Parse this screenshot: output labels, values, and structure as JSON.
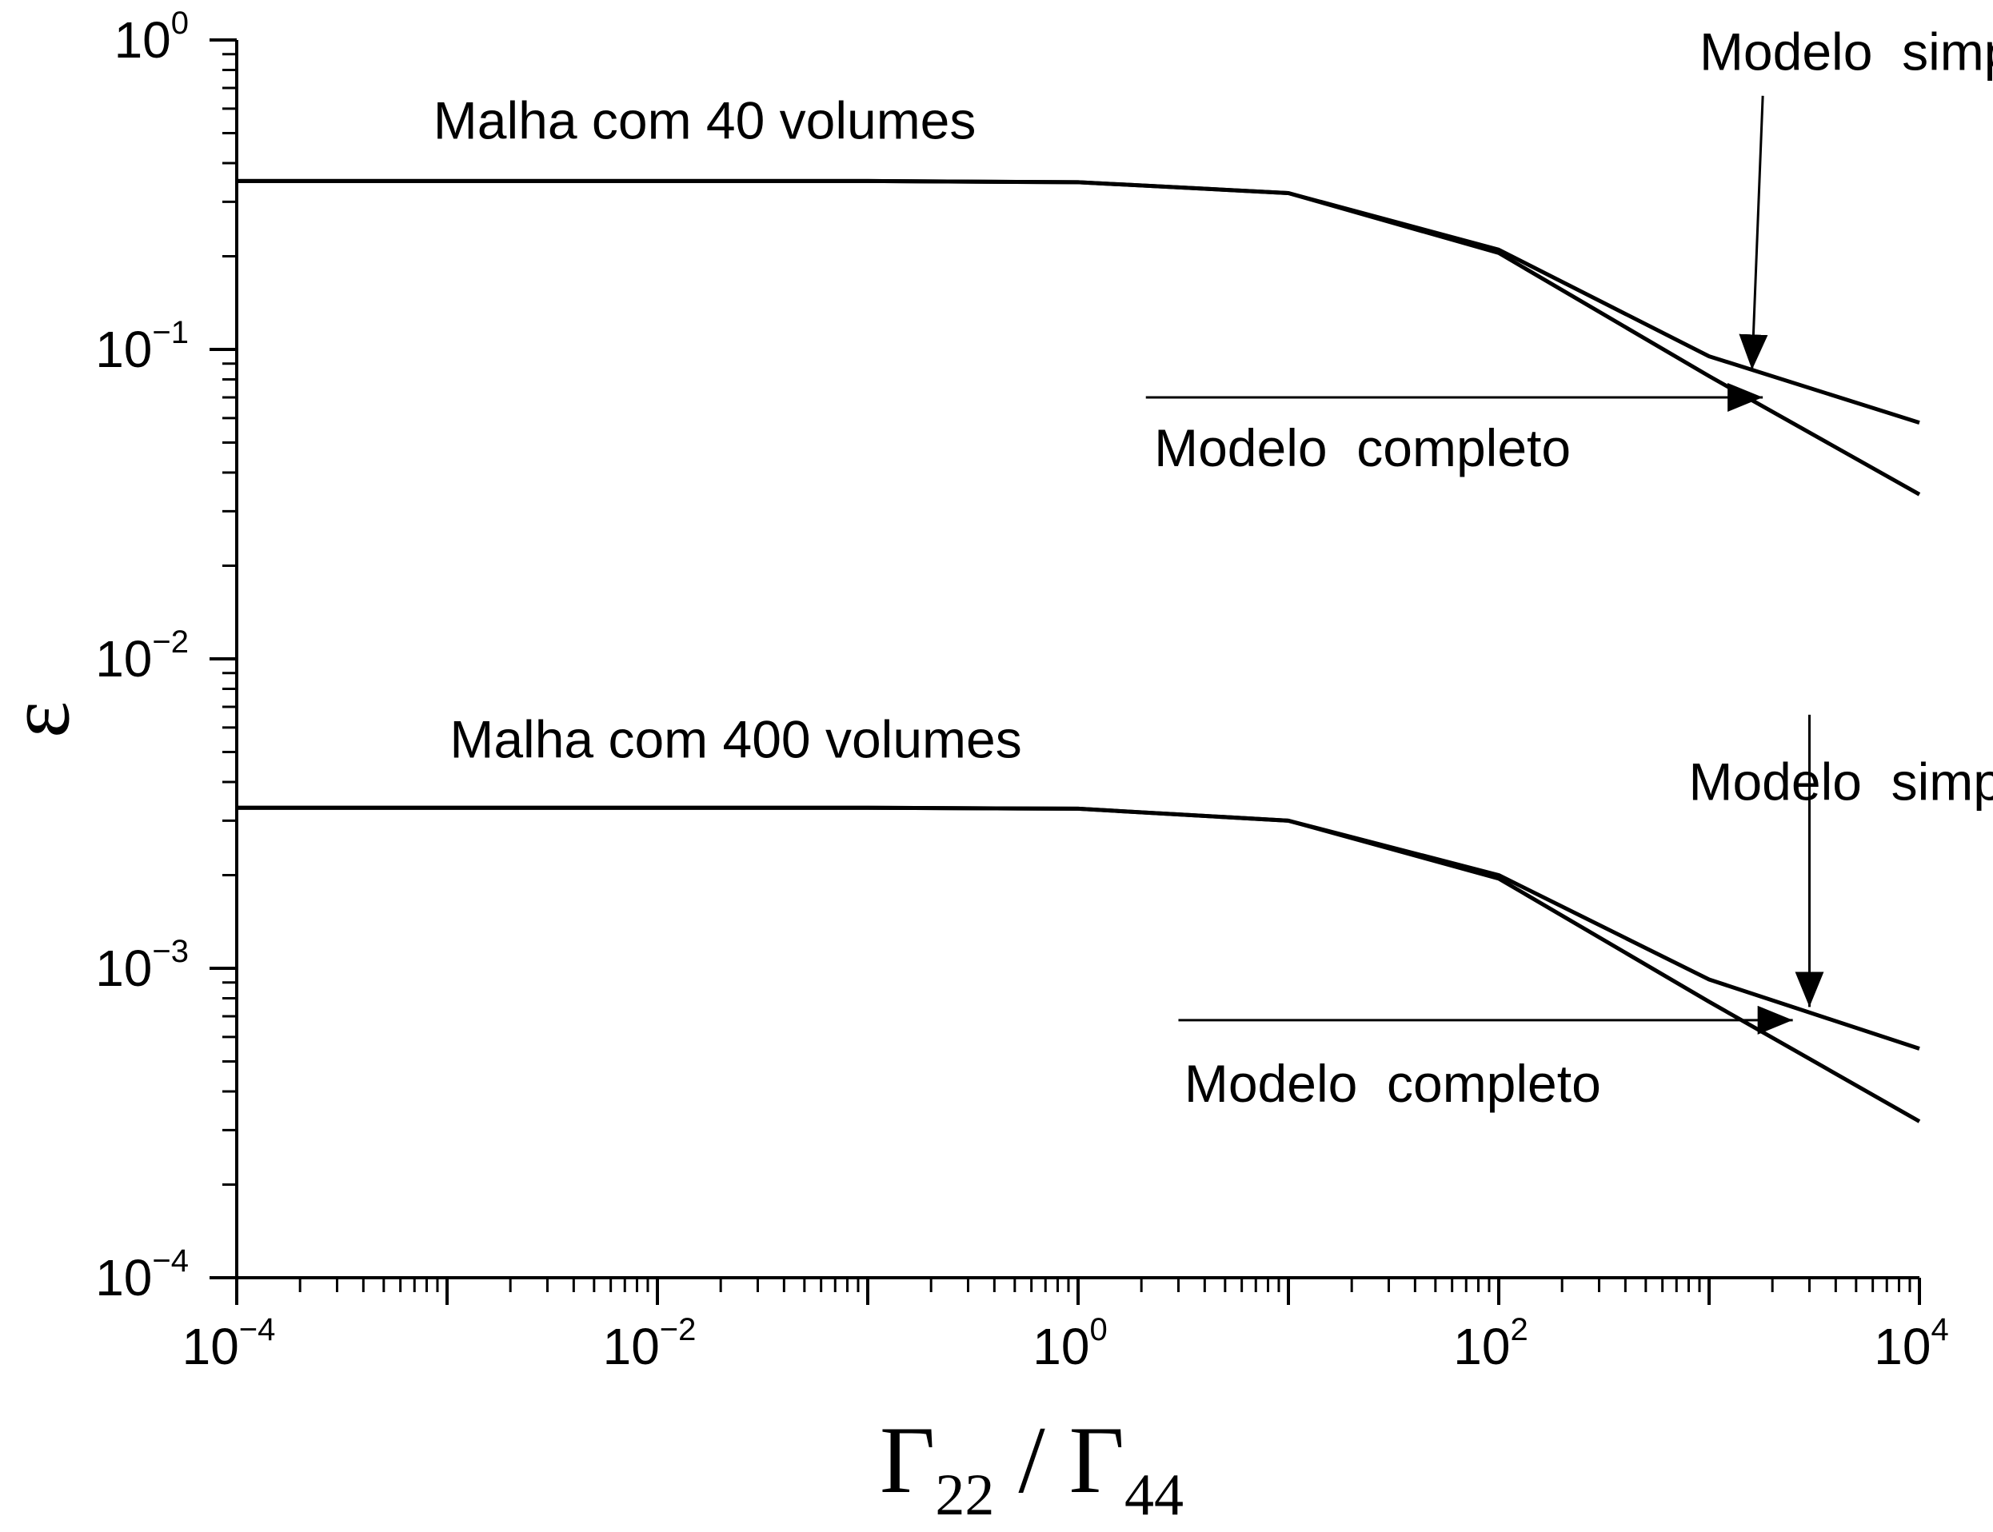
{
  "chart_data": {
    "type": "line",
    "x_scale": "log",
    "y_scale": "log",
    "xlim": [
      0.0001,
      10000
    ],
    "ylim": [
      0.0001,
      1
    ],
    "grid": false,
    "legend": "none",
    "line_color": "#000000",
    "xlabel": {
      "symbol1": "Γ",
      "sub1": "22",
      "separator": " / ",
      "symbol2": "Γ",
      "sub2": "44"
    },
    "ylabel": "ε",
    "x_ticks": [
      {
        "base": "10",
        "exp": "−4",
        "value": 0.0001
      },
      {
        "base": "10",
        "exp": "−2",
        "value": 0.01
      },
      {
        "base": "10",
        "exp": "0",
        "value": 1
      },
      {
        "base": "10",
        "exp": "2",
        "value": 100
      },
      {
        "base": "10",
        "exp": "4",
        "value": 10000
      }
    ],
    "y_ticks": [
      {
        "base": "10",
        "exp": "0",
        "value": 1
      },
      {
        "base": "10",
        "exp": "−1",
        "value": 0.1
      },
      {
        "base": "10",
        "exp": "−2",
        "value": 0.01
      },
      {
        "base": "10",
        "exp": "−3",
        "value": 0.001
      },
      {
        "base": "10",
        "exp": "−4",
        "value": 0.0001
      }
    ],
    "series": [
      {
        "x": [
          0.0001,
          0.001,
          0.01,
          0.1,
          1,
          10,
          100,
          1000,
          10000
        ],
        "y": [
          0.35,
          0.35,
          0.35,
          0.35,
          0.347,
          0.32,
          0.21,
          0.095,
          0.058
        ]
      },
      {
        "x": [
          0.0001,
          0.001,
          0.01,
          0.1,
          1,
          10,
          100,
          1000,
          10000
        ],
        "y": [
          0.35,
          0.35,
          0.35,
          0.35,
          0.347,
          0.32,
          0.205,
          0.082,
          0.034
        ]
      },
      {
        "x": [
          0.0001,
          0.001,
          0.01,
          0.1,
          1,
          10,
          100,
          1000,
          10000
        ],
        "y": [
          0.0033,
          0.0033,
          0.0033,
          0.0033,
          0.00328,
          0.003,
          0.002,
          0.00092,
          0.00055
        ]
      },
      {
        "x": [
          0.0001,
          0.001,
          0.01,
          0.1,
          1,
          10,
          100,
          1000,
          10000
        ],
        "y": [
          0.0033,
          0.0033,
          0.0033,
          0.0033,
          0.00328,
          0.003,
          0.00195,
          0.00078,
          0.00032
        ]
      }
    ],
    "annotations": [
      {
        "text": "Malha com 40 volumes",
        "x": 0.00086,
        "y": 0.48
      },
      {
        "text": "Modelo  simplificado",
        "x": 900,
        "y": 0.8
      },
      {
        "text": "Modelo  completo",
        "x": 2.3,
        "y": 0.042
      },
      {
        "text": "Malha com 400 volumes",
        "x": 0.00103,
        "y": 0.0048
      },
      {
        "text": "Modelo  simplificado",
        "x": 800,
        "y": 0.0035
      },
      {
        "text": "Modelo  completo",
        "x": 3.2,
        "y": 0.00037
      }
    ],
    "arrows": [
      {
        "from": [
          1800,
          0.66
        ],
        "to": [
          1600,
          0.086
        ]
      },
      {
        "from": [
          2.1,
          0.07
        ],
        "to": [
          1800,
          0.07
        ]
      },
      {
        "from": [
          3000,
          0.0066
        ],
        "to": [
          3000,
          0.00075
        ]
      },
      {
        "from": [
          3.0,
          0.00068
        ],
        "to": [
          2500,
          0.00068
        ]
      }
    ]
  }
}
